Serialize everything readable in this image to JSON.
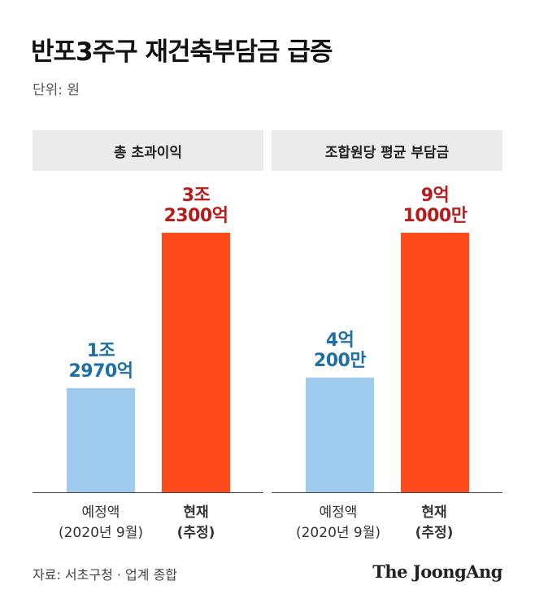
{
  "title": "반포3주구 재건축부담금 급증",
  "unit": "단위: 원",
  "source": "자료: 서초구청 · 업계 종합",
  "brand": "The JoongAng",
  "colors": {
    "past": "#9ecbee",
    "current": "#ff4a1c",
    "past_label": "#1d6fa5",
    "current_label": "#b71c1c"
  },
  "chart_data": [
    {
      "type": "bar",
      "title": "총 초과이익",
      "categories": [
        {
          "line1": "예정액",
          "line2": "(2020년 9월)"
        },
        {
          "line1": "현재",
          "line2": "(추정)"
        }
      ],
      "values": [
        12970,
        32300
      ],
      "value_unit": "억 원",
      "data_labels": [
        {
          "line1": "1조",
          "line2": "2970억"
        },
        {
          "line1": "3조",
          "line2": "2300억"
        }
      ],
      "ylim": [
        0,
        40000
      ]
    },
    {
      "type": "bar",
      "title": "조합원당 평균 부담금",
      "categories": [
        {
          "line1": "예정액",
          "line2": "(2020년 9월)"
        },
        {
          "line1": "현재",
          "line2": "(추정)"
        }
      ],
      "values": [
        40200,
        91000
      ],
      "value_unit": "만 원",
      "data_labels": [
        {
          "line1": "4억",
          "line2": "200만"
        },
        {
          "line1": "9억",
          "line2": "1000만"
        }
      ],
      "ylim": [
        0,
        112700
      ]
    }
  ]
}
